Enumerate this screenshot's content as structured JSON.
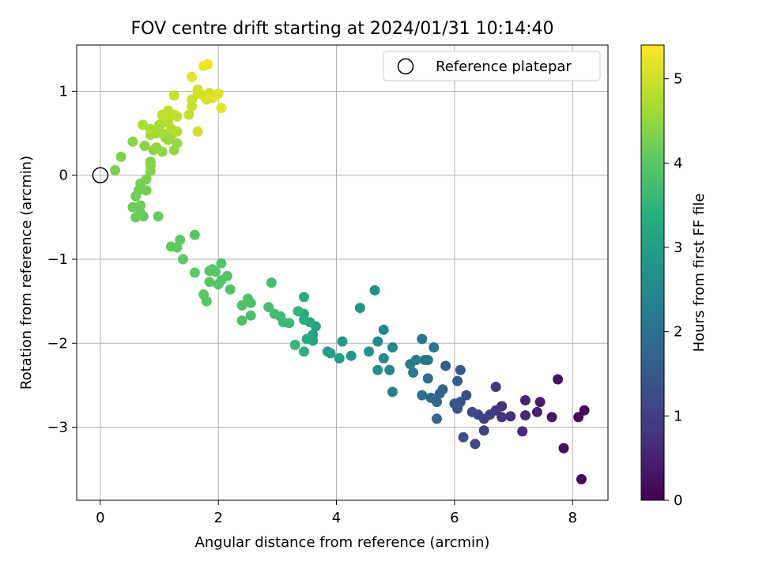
{
  "chart_data": {
    "type": "scatter",
    "title": "FOV centre drift starting at 2024/01/31 10:14:40",
    "xlabel": "Angular distance from reference (arcmin)",
    "ylabel": "Rotation from reference (arcmin)",
    "xlim": [
      -0.4,
      8.6
    ],
    "ylim": [
      -3.87,
      1.55
    ],
    "xticks": [
      0,
      2,
      4,
      6,
      8
    ],
    "yticks": [
      -3,
      -2,
      -1,
      0,
      1
    ],
    "grid": true,
    "legend": {
      "label": "Reference platepar",
      "position": "upper right"
    },
    "reference_point": {
      "x": 0,
      "y": 0
    },
    "colorbar": {
      "label": "Hours from first FF file",
      "range": [
        0,
        5.4
      ],
      "ticks": [
        0,
        1,
        2,
        3,
        4,
        5
      ],
      "colormap": "viridis"
    },
    "points": [
      {
        "x": 8.15,
        "y": -3.62,
        "c": 0.05
      },
      {
        "x": 8.2,
        "y": -2.8,
        "c": 0.1
      },
      {
        "x": 8.1,
        "y": -2.88,
        "c": 0.15
      },
      {
        "x": 7.85,
        "y": -3.25,
        "c": 0.2
      },
      {
        "x": 7.75,
        "y": -2.43,
        "c": 0.3
      },
      {
        "x": 7.65,
        "y": -2.88,
        "c": 0.35
      },
      {
        "x": 7.45,
        "y": -2.7,
        "c": 0.45
      },
      {
        "x": 7.4,
        "y": -2.82,
        "c": 0.5
      },
      {
        "x": 7.2,
        "y": -2.68,
        "c": 0.55
      },
      {
        "x": 7.2,
        "y": -2.86,
        "c": 0.6
      },
      {
        "x": 7.15,
        "y": -3.05,
        "c": 0.65
      },
      {
        "x": 6.95,
        "y": -2.87,
        "c": 0.7
      },
      {
        "x": 6.8,
        "y": -2.75,
        "c": 0.75
      },
      {
        "x": 6.8,
        "y": -2.88,
        "c": 0.8
      },
      {
        "x": 6.7,
        "y": -2.8,
        "c": 0.85
      },
      {
        "x": 6.7,
        "y": -2.52,
        "c": 0.9
      },
      {
        "x": 6.6,
        "y": -2.85,
        "c": 0.95
      },
      {
        "x": 6.5,
        "y": -2.9,
        "c": 1.0
      },
      {
        "x": 6.5,
        "y": -3.04,
        "c": 1.05
      },
      {
        "x": 6.4,
        "y": -2.85,
        "c": 1.1
      },
      {
        "x": 6.35,
        "y": -3.2,
        "c": 1.15
      },
      {
        "x": 6.3,
        "y": -2.82,
        "c": 1.2
      },
      {
        "x": 6.2,
        "y": -2.62,
        "c": 1.25
      },
      {
        "x": 6.15,
        "y": -3.12,
        "c": 1.3
      },
      {
        "x": 6.1,
        "y": -2.7,
        "c": 1.35
      },
      {
        "x": 6.05,
        "y": -2.78,
        "c": 1.4
      },
      {
        "x": 6.0,
        "y": -2.72,
        "c": 1.45
      },
      {
        "x": 6.1,
        "y": -2.32,
        "c": 1.5
      },
      {
        "x": 6.05,
        "y": -2.45,
        "c": 1.55
      },
      {
        "x": 5.85,
        "y": -2.27,
        "c": 1.6
      },
      {
        "x": 5.8,
        "y": -2.55,
        "c": 1.65
      },
      {
        "x": 5.75,
        "y": -2.6,
        "c": 1.7
      },
      {
        "x": 5.7,
        "y": -2.9,
        "c": 1.75
      },
      {
        "x": 5.7,
        "y": -2.7,
        "c": 1.8
      },
      {
        "x": 5.6,
        "y": -2.65,
        "c": 1.85
      },
      {
        "x": 5.55,
        "y": -2.42,
        "c": 1.9
      },
      {
        "x": 5.45,
        "y": -2.62,
        "c": 1.95
      },
      {
        "x": 5.5,
        "y": -2.2,
        "c": 2.0
      },
      {
        "x": 5.45,
        "y": -1.95,
        "c": 2.05
      },
      {
        "x": 5.65,
        "y": -2.05,
        "c": 2.1
      },
      {
        "x": 5.55,
        "y": -2.2,
        "c": 2.15
      },
      {
        "x": 5.35,
        "y": -2.2,
        "c": 2.2
      },
      {
        "x": 5.3,
        "y": -2.35,
        "c": 2.25
      },
      {
        "x": 5.25,
        "y": -2.25,
        "c": 2.3
      },
      {
        "x": 4.95,
        "y": -2.58,
        "c": 2.35
      },
      {
        "x": 4.9,
        "y": -2.32,
        "c": 2.4
      },
      {
        "x": 4.95,
        "y": -2.05,
        "c": 2.45
      },
      {
        "x": 4.8,
        "y": -2.18,
        "c": 2.5
      },
      {
        "x": 4.8,
        "y": -1.84,
        "c": 2.55
      },
      {
        "x": 4.7,
        "y": -1.98,
        "c": 2.6
      },
      {
        "x": 4.7,
        "y": -2.32,
        "c": 2.65
      },
      {
        "x": 4.65,
        "y": -1.37,
        "c": 2.7
      },
      {
        "x": 4.55,
        "y": -2.1,
        "c": 2.75
      },
      {
        "x": 4.4,
        "y": -1.58,
        "c": 2.8
      },
      {
        "x": 4.25,
        "y": -2.15,
        "c": 2.85
      },
      {
        "x": 4.1,
        "y": -1.98,
        "c": 2.9
      },
      {
        "x": 4.05,
        "y": -2.18,
        "c": 2.95
      },
      {
        "x": 3.9,
        "y": -2.12,
        "c": 3.0
      },
      {
        "x": 3.85,
        "y": -2.1,
        "c": 3.05
      },
      {
        "x": 3.65,
        "y": -1.8,
        "c": 3.1
      },
      {
        "x": 3.6,
        "y": -1.9,
        "c": 3.12
      },
      {
        "x": 3.6,
        "y": -1.97,
        "c": 3.15
      },
      {
        "x": 3.55,
        "y": -1.75,
        "c": 3.2
      },
      {
        "x": 3.5,
        "y": -1.95,
        "c": 3.25
      },
      {
        "x": 3.45,
        "y": -1.65,
        "c": 3.3
      },
      {
        "x": 3.45,
        "y": -1.45,
        "c": 3.35
      },
      {
        "x": 3.45,
        "y": -1.72,
        "c": 3.4
      },
      {
        "x": 3.45,
        "y": -2.1,
        "c": 3.45
      },
      {
        "x": 3.35,
        "y": -1.62,
        "c": 3.5
      },
      {
        "x": 3.3,
        "y": -2.02,
        "c": 3.55
      },
      {
        "x": 3.2,
        "y": -1.76,
        "c": 3.6
      },
      {
        "x": 3.1,
        "y": -1.75,
        "c": 3.65
      },
      {
        "x": 3.05,
        "y": -1.68,
        "c": 3.7
      },
      {
        "x": 2.95,
        "y": -1.65,
        "c": 3.72
      },
      {
        "x": 2.9,
        "y": -1.28,
        "c": 3.75
      },
      {
        "x": 2.85,
        "y": -1.57,
        "c": 3.78
      },
      {
        "x": 2.55,
        "y": -1.67,
        "c": 3.8
      },
      {
        "x": 2.55,
        "y": -1.52,
        "c": 3.82
      },
      {
        "x": 2.5,
        "y": -1.47,
        "c": 3.84
      },
      {
        "x": 2.4,
        "y": -1.55,
        "c": 3.86
      },
      {
        "x": 2.4,
        "y": -1.73,
        "c": 3.88
      },
      {
        "x": 2.2,
        "y": -1.36,
        "c": 3.9
      },
      {
        "x": 2.15,
        "y": -1.2,
        "c": 3.91
      },
      {
        "x": 2.05,
        "y": -1.05,
        "c": 3.92
      },
      {
        "x": 2.05,
        "y": -1.25,
        "c": 3.93
      },
      {
        "x": 2.0,
        "y": -1.3,
        "c": 3.94
      },
      {
        "x": 1.95,
        "y": -1.15,
        "c": 3.95
      },
      {
        "x": 1.9,
        "y": -1.12,
        "c": 3.96
      },
      {
        "x": 1.85,
        "y": -1.14,
        "c": 3.97
      },
      {
        "x": 1.85,
        "y": -1.27,
        "c": 3.98
      },
      {
        "x": 1.75,
        "y": -1.42,
        "c": 3.99
      },
      {
        "x": 1.8,
        "y": -1.5,
        "c": 4.0
      },
      {
        "x": 1.6,
        "y": -0.71,
        "c": 4.01
      },
      {
        "x": 1.6,
        "y": -1.16,
        "c": 4.02
      },
      {
        "x": 1.4,
        "y": -1.0,
        "c": 4.03
      },
      {
        "x": 1.35,
        "y": -0.77,
        "c": 4.04
      },
      {
        "x": 1.3,
        "y": -0.86,
        "c": 4.05
      },
      {
        "x": 1.2,
        "y": -0.85,
        "c": 4.06
      },
      {
        "x": 0.98,
        "y": -0.49,
        "c": 4.08
      },
      {
        "x": 0.73,
        "y": -0.49,
        "c": 4.1
      },
      {
        "x": 0.68,
        "y": -0.45,
        "c": 4.12
      },
      {
        "x": 0.6,
        "y": -0.5,
        "c": 4.14
      },
      {
        "x": 0.55,
        "y": -0.38,
        "c": 4.16
      },
      {
        "x": 0.68,
        "y": -0.36,
        "c": 4.18
      },
      {
        "x": 0.6,
        "y": -0.25,
        "c": 4.2
      },
      {
        "x": 0.65,
        "y": -0.18,
        "c": 4.22
      },
      {
        "x": 0.78,
        "y": -0.18,
        "c": 4.24
      },
      {
        "x": 0.68,
        "y": -0.1,
        "c": 4.26
      },
      {
        "x": 0.78,
        "y": -0.05,
        "c": 4.28
      },
      {
        "x": 0.25,
        "y": 0.06,
        "c": 4.3
      },
      {
        "x": 0.35,
        "y": 0.22,
        "c": 4.33
      },
      {
        "x": 0.85,
        "y": 0.05,
        "c": 4.36
      },
      {
        "x": 0.85,
        "y": 0.16,
        "c": 4.38
      },
      {
        "x": 0.85,
        "y": 0.12,
        "c": 4.4
      },
      {
        "x": 0.55,
        "y": 0.4,
        "c": 4.42
      },
      {
        "x": 0.75,
        "y": 0.35,
        "c": 4.44
      },
      {
        "x": 0.9,
        "y": 0.3,
        "c": 4.46
      },
      {
        "x": 0.95,
        "y": 0.33,
        "c": 4.48
      },
      {
        "x": 1.05,
        "y": 0.28,
        "c": 4.5
      },
      {
        "x": 1.25,
        "y": 0.3,
        "c": 4.52
      },
      {
        "x": 1.3,
        "y": 0.38,
        "c": 4.54
      },
      {
        "x": 1.15,
        "y": 0.42,
        "c": 4.56
      },
      {
        "x": 1.1,
        "y": 0.45,
        "c": 4.58
      },
      {
        "x": 1.2,
        "y": 0.48,
        "c": 4.6
      },
      {
        "x": 1.05,
        "y": 0.5,
        "c": 4.62
      },
      {
        "x": 0.95,
        "y": 0.5,
        "c": 4.64
      },
      {
        "x": 0.85,
        "y": 0.48,
        "c": 4.66
      },
      {
        "x": 0.85,
        "y": 0.55,
        "c": 4.68
      },
      {
        "x": 0.72,
        "y": 0.6,
        "c": 4.7
      },
      {
        "x": 1.0,
        "y": 0.6,
        "c": 4.72
      },
      {
        "x": 1.05,
        "y": 0.62,
        "c": 4.74
      },
      {
        "x": 1.2,
        "y": 0.55,
        "c": 4.76
      },
      {
        "x": 1.3,
        "y": 0.52,
        "c": 4.78
      },
      {
        "x": 1.15,
        "y": 0.63,
        "c": 4.8
      },
      {
        "x": 1.1,
        "y": 0.68,
        "c": 4.82
      },
      {
        "x": 1.05,
        "y": 0.72,
        "c": 4.84
      },
      {
        "x": 1.15,
        "y": 0.77,
        "c": 4.86
      },
      {
        "x": 1.25,
        "y": 0.72,
        "c": 4.88
      },
      {
        "x": 1.3,
        "y": 0.7,
        "c": 4.9
      },
      {
        "x": 1.5,
        "y": 0.72,
        "c": 4.92
      },
      {
        "x": 1.55,
        "y": 0.82,
        "c": 4.94
      },
      {
        "x": 1.55,
        "y": 0.9,
        "c": 4.96
      },
      {
        "x": 1.25,
        "y": 0.95,
        "c": 4.98
      },
      {
        "x": 1.65,
        "y": 0.52,
        "c": 5.0
      },
      {
        "x": 1.65,
        "y": 0.97,
        "c": 5.02
      },
      {
        "x": 1.65,
        "y": 1.02,
        "c": 5.04
      },
      {
        "x": 1.75,
        "y": 0.95,
        "c": 5.06
      },
      {
        "x": 1.8,
        "y": 0.9,
        "c": 5.08
      },
      {
        "x": 1.85,
        "y": 0.98,
        "c": 5.1
      },
      {
        "x": 1.9,
        "y": 0.92,
        "c": 5.12
      },
      {
        "x": 1.95,
        "y": 0.95,
        "c": 5.14
      },
      {
        "x": 2.0,
        "y": 0.97,
        "c": 5.16
      },
      {
        "x": 2.05,
        "y": 0.8,
        "c": 5.18
      },
      {
        "x": 1.55,
        "y": 1.17,
        "c": 5.2
      },
      {
        "x": 1.75,
        "y": 1.3,
        "c": 5.25
      },
      {
        "x": 1.82,
        "y": 1.32,
        "c": 5.3
      }
    ]
  }
}
